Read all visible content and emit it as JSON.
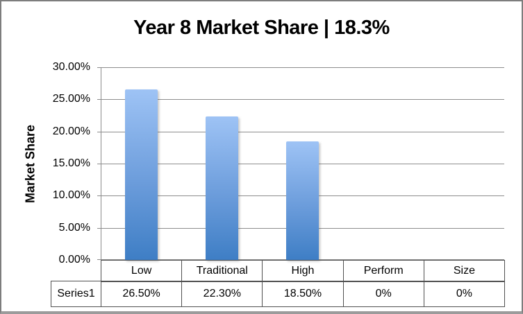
{
  "chart": {
    "title": "Year 8 Market Share | 18.3%",
    "y_axis_title": "Market Share"
  },
  "chart_data": {
    "type": "bar",
    "title": "Year 8 Market Share | 18.3%",
    "categories": [
      "Low",
      "Traditional",
      "High",
      "Perform",
      "Size"
    ],
    "series": [
      {
        "name": "Series1",
        "values": [
          26.5,
          22.3,
          18.5,
          0,
          0
        ],
        "display_values": [
          "26.50%",
          "22.30%",
          "18.50%",
          "0%",
          "0%"
        ]
      }
    ],
    "xlabel": "",
    "ylabel": "Market Share",
    "ylim": [
      0,
      30
    ],
    "y_ticks": [
      "30.00%",
      "25.00%",
      "20.00%",
      "15.00%",
      "10.00%",
      "5.00%",
      "0.00%"
    ],
    "grid": "horizontal",
    "legend_position": "data-table-below-axis"
  },
  "colors": {
    "bar_gradient_top": "#9ec3f5",
    "bar_gradient_mid": "#6b9cdb",
    "bar_gradient_bottom": "#3e7ec5",
    "gridline": "#8c8c8c",
    "table_border": "#4f4f4f",
    "frame_border": "#7d7d7d",
    "text": "#000000"
  }
}
